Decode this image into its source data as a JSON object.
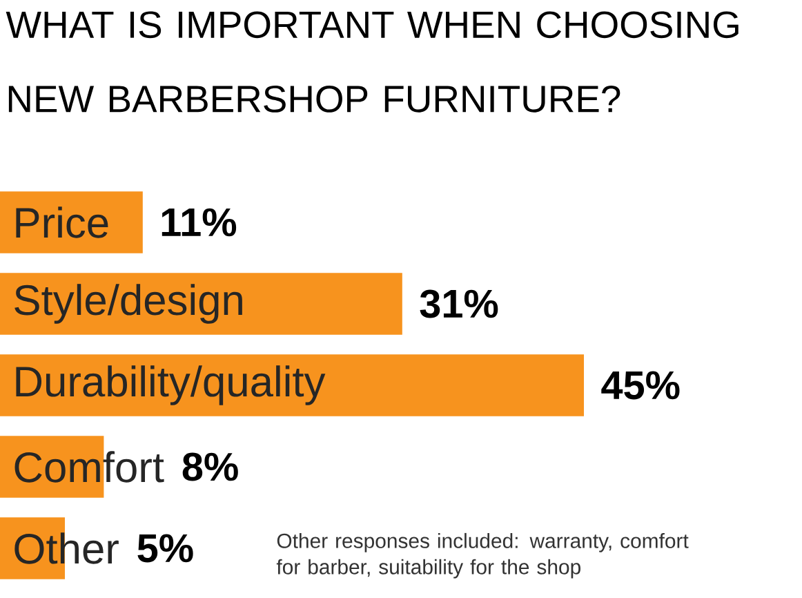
{
  "chart_data": {
    "type": "bar",
    "orientation": "horizontal",
    "title": "WHAT IS IMPORTANT WHEN CHOOSING NEW BARBERSHOP FURNITURE?",
    "categories": [
      "Price",
      "Style/design",
      "Durability/quality",
      "Comfort",
      "Other"
    ],
    "values": [
      11,
      31,
      45,
      8,
      5
    ],
    "value_labels": [
      "11%",
      "31%",
      "45%",
      "8%",
      "5%"
    ],
    "color": "#f7931e",
    "annotations": [
      "Other responses included: warranty, comfort for barber, suitability for the shop"
    ]
  }
}
